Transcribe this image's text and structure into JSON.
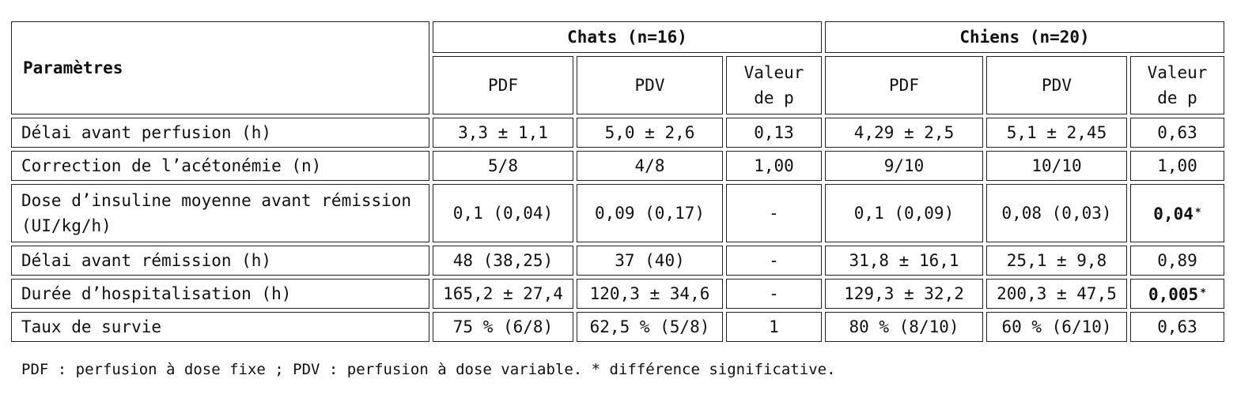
{
  "table": {
    "param_header": "Paramètres",
    "group_cats": "Chats (n=16)",
    "group_dogs": "Chiens (n=20)",
    "sub_pdf": "PDF",
    "sub_pdv": "PDV",
    "sub_p": "Valeur de p",
    "rows": [
      {
        "label": "Délai avant perfusion (h)",
        "cats_pdf": "3,3 ± 1,1",
        "cats_pdv": "5,0 ± 2,6",
        "cats_p": "0,13",
        "dogs_pdf": "4,29 ± 2,5",
        "dogs_pdv": "5,1 ± 2,45",
        "dogs_p": "0,63"
      },
      {
        "label": "Correction de l’acétonémie (n)",
        "cats_pdf": "5/8",
        "cats_pdv": "4/8",
        "cats_p": "1,00",
        "dogs_pdf": "9/10",
        "dogs_pdv": "10/10",
        "dogs_p": "1,00"
      },
      {
        "label": "Dose d’insuline moyenne avant rémission (UI/kg/h)",
        "cats_pdf": "0,1 (0,04)",
        "cats_pdv": "0,09 (0,17)",
        "cats_p": "-",
        "dogs_pdf": "0,1 (0,09)",
        "dogs_pdv": "0,08 (0,03)",
        "dogs_p": "0,04"
      },
      {
        "label": "Délai avant rémission (h)",
        "cats_pdf": "48 (38,25)",
        "cats_pdv": "37 (40)",
        "cats_p": "-",
        "dogs_pdf": "31,8 ± 16,1",
        "dogs_pdv": "25,1 ± 9,8",
        "dogs_p": "0,89"
      },
      {
        "label": "Durée d’hospitalisation (h)",
        "cats_pdf": "165,2 ± 27,4",
        "cats_pdv": "120,3 ± 34,6",
        "cats_p": "-",
        "dogs_pdf": "129,3 ± 32,2",
        "dogs_pdv": "200,3 ± 47,5",
        "dogs_p": "0,005"
      },
      {
        "label": "Taux de survie",
        "cats_pdf": "75 % (6/8)",
        "cats_pdv": "62,5 % (5/8)",
        "cats_p": "1",
        "dogs_pdf": "80 % (8/10)",
        "dogs_pdv": "60 % (6/10)",
        "dogs_p": "0,63"
      }
    ],
    "sig_marker": "*"
  },
  "footnote": "PDF : perfusion à dose fixe ; PDV : perfusion à dose variable. * différence significative."
}
